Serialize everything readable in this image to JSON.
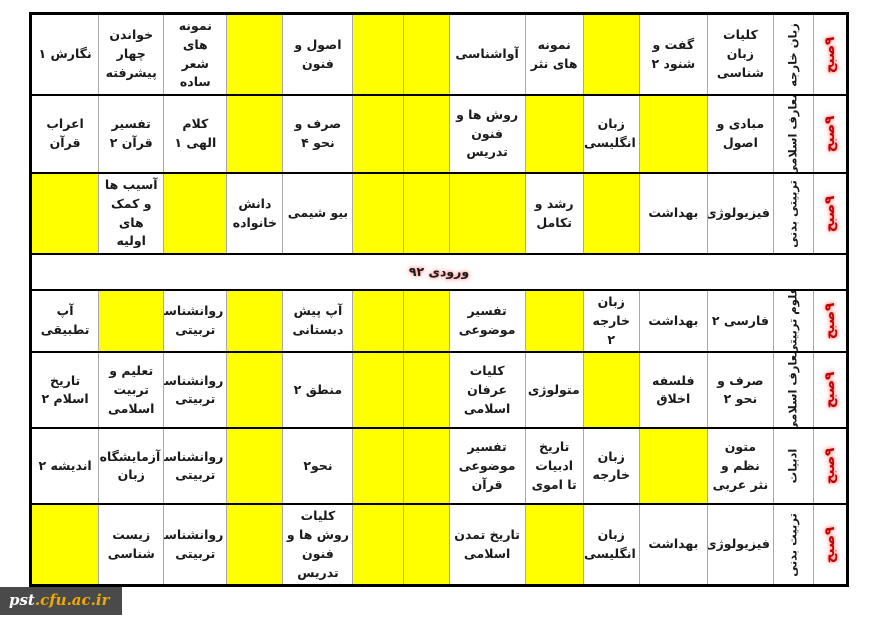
{
  "colors": {
    "highlight_yellow": "#ffff00",
    "accent_red": "#c00000",
    "watermark_bg": "#4a4a4a",
    "watermark_gold": "#f2a900"
  },
  "watermark": {
    "prefix": "pst",
    "suffix": ".cfu.ac.ir"
  },
  "table": {
    "time_label": "۹صبح",
    "banner": "ورودی ۹۲",
    "top_rows": [
      {
        "category": "زبان خارجه",
        "cells": [
          {
            "text": "کلیات زبان شناسی",
            "highlight": false
          },
          {
            "text": "گفت و شنود ۲",
            "highlight": false
          },
          {
            "text": "",
            "highlight": true
          },
          {
            "text": "نمونه های نثر",
            "highlight": false
          },
          {
            "text": "آواشناسی",
            "highlight": false
          },
          {
            "text": "",
            "highlight": true
          },
          {
            "text": "",
            "highlight": true
          },
          {
            "text": "اصول و فنون",
            "highlight": false
          },
          {
            "text": "",
            "highlight": true
          },
          {
            "text": "نمونه های شعر ساده",
            "highlight": false
          },
          {
            "text": "خواندن چهار پیشرفته",
            "highlight": false
          },
          {
            "text": "نگارش ۱",
            "highlight": false
          }
        ]
      },
      {
        "category": "معارف اسلامی",
        "cells": [
          {
            "text": "مبادی و اصول",
            "highlight": false
          },
          {
            "text": "",
            "highlight": true
          },
          {
            "text": "زبان انگلیسی",
            "highlight": false
          },
          {
            "text": "",
            "highlight": true
          },
          {
            "text": "روش ها و فنون تدریس",
            "highlight": false
          },
          {
            "text": "",
            "highlight": true
          },
          {
            "text": "",
            "highlight": true
          },
          {
            "text": "صرف و نحو ۴",
            "highlight": false
          },
          {
            "text": "",
            "highlight": true
          },
          {
            "text": "کلام الهی ۱",
            "highlight": false
          },
          {
            "text": "تفسیر قرآن ۲",
            "highlight": false
          },
          {
            "text": "اعراب قرآن",
            "highlight": false
          }
        ]
      },
      {
        "category": "تربیتی بدنی",
        "cells": [
          {
            "text": "فیزیولوژی",
            "highlight": false
          },
          {
            "text": "بهداشت",
            "highlight": false
          },
          {
            "text": "",
            "highlight": true
          },
          {
            "text": "رشد و تکامل",
            "highlight": false
          },
          {
            "text": "",
            "highlight": true
          },
          {
            "text": "",
            "highlight": true
          },
          {
            "text": "",
            "highlight": true
          },
          {
            "text": "بیو شیمی",
            "highlight": false
          },
          {
            "text": "دانش خانواده",
            "highlight": false
          },
          {
            "text": "",
            "highlight": true
          },
          {
            "text": "آسیب ها و کمک های اولیه",
            "highlight": false
          },
          {
            "text": "",
            "highlight": true
          }
        ]
      }
    ],
    "bottom_rows": [
      {
        "category": "علوم تربیتی",
        "cells": [
          {
            "text": "فارسی ۲",
            "highlight": false
          },
          {
            "text": "بهداشت",
            "highlight": false
          },
          {
            "text": "زبان خارجه ۲",
            "highlight": false
          },
          {
            "text": "",
            "highlight": true
          },
          {
            "text": "تفسیر موضوعی",
            "highlight": false
          },
          {
            "text": "",
            "highlight": true
          },
          {
            "text": "",
            "highlight": true
          },
          {
            "text": "آپ پیش دبستانی",
            "highlight": false
          },
          {
            "text": "",
            "highlight": true
          },
          {
            "text": "روانشناسی تربیتی",
            "highlight": false
          },
          {
            "text": "",
            "highlight": true
          },
          {
            "text": "آپ تطبیقی",
            "highlight": false
          }
        ]
      },
      {
        "category": "معارف اسلامی",
        "cells": [
          {
            "text": "صرف و نحو ۲",
            "highlight": false
          },
          {
            "text": "فلسفه اخلاق",
            "highlight": false
          },
          {
            "text": "",
            "highlight": true
          },
          {
            "text": "متولوژی",
            "highlight": false
          },
          {
            "text": "کلیات عرفان اسلامی",
            "highlight": false
          },
          {
            "text": "",
            "highlight": true
          },
          {
            "text": "",
            "highlight": true
          },
          {
            "text": "منطق ۲",
            "highlight": false
          },
          {
            "text": "",
            "highlight": true
          },
          {
            "text": "روانشناسی تربیتی",
            "highlight": false
          },
          {
            "text": "تعلیم و تربیت اسلامی",
            "highlight": false
          },
          {
            "text": "تاریخ اسلام ۲",
            "highlight": false
          }
        ]
      },
      {
        "category": "ادبیات",
        "cells": [
          {
            "text": "متون نظم و نثر عربی",
            "highlight": false
          },
          {
            "text": "",
            "highlight": true
          },
          {
            "text": "زبان خارجه",
            "highlight": false
          },
          {
            "text": "تاریخ ادبیات تا اموی",
            "highlight": false
          },
          {
            "text": "تفسیر موضوعی قرآن",
            "highlight": false
          },
          {
            "text": "",
            "highlight": true
          },
          {
            "text": "",
            "highlight": true
          },
          {
            "text": "نحو۲",
            "highlight": false
          },
          {
            "text": "",
            "highlight": true
          },
          {
            "text": "روانشناسی تربیتی",
            "highlight": false
          },
          {
            "text": "آزمایشگاه زبان",
            "highlight": false
          },
          {
            "text": "اندیشه ۲",
            "highlight": false
          }
        ]
      },
      {
        "category": "تربیت بدنی",
        "cells": [
          {
            "text": "فیزیولوژی",
            "highlight": false
          },
          {
            "text": "بهداشت",
            "highlight": false
          },
          {
            "text": "زبان انگلیسی",
            "highlight": false
          },
          {
            "text": "",
            "highlight": true
          },
          {
            "text": "تاریخ تمدن اسلامی",
            "highlight": false
          },
          {
            "text": "",
            "highlight": true
          },
          {
            "text": "",
            "highlight": true
          },
          {
            "text": "کلیات روش ها و فنون تدریس",
            "highlight": false
          },
          {
            "text": "",
            "highlight": true
          },
          {
            "text": "روانشناسی تربیتی",
            "highlight": false
          },
          {
            "text": "زیست شناسی",
            "highlight": false
          },
          {
            "text": "",
            "highlight": true
          }
        ]
      }
    ]
  }
}
